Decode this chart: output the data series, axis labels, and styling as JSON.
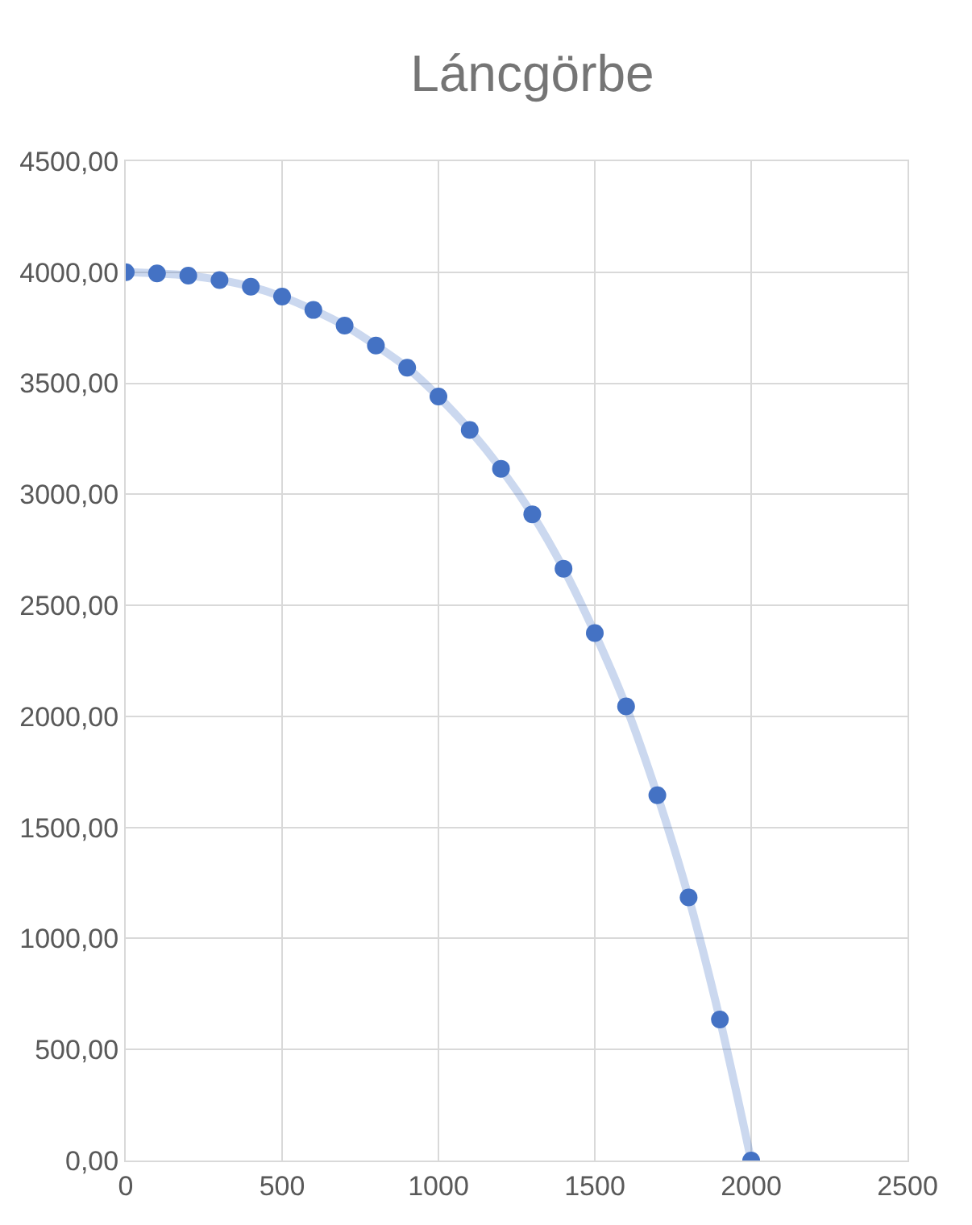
{
  "chart_data": {
    "type": "line",
    "title": "Láncgörbe",
    "x": [
      0,
      100,
      200,
      300,
      400,
      500,
      600,
      700,
      800,
      900,
      1000,
      1100,
      1200,
      1300,
      1400,
      1500,
      1600,
      1700,
      1800,
      1900,
      2000
    ],
    "series": [
      {
        "color": "#4472c4",
        "values": [
          4000,
          3995,
          3985,
          3965,
          3935,
          3890,
          3830,
          3760,
          3670,
          3570,
          3440,
          3290,
          3115,
          2910,
          2665,
          2375,
          2045,
          1645,
          1185,
          635,
          0
        ]
      }
    ],
    "xlim": [
      0,
      2500
    ],
    "xticks": [
      0,
      500,
      1000,
      1500,
      2000,
      2500
    ],
    "ylim": [
      0,
      4500
    ],
    "yticks": [
      {
        "value": 0,
        "label": "0,00"
      },
      {
        "value": 500,
        "label": "500,00"
      },
      {
        "value": 1000,
        "label": "1000,00"
      },
      {
        "value": 1500,
        "label": "1500,00"
      },
      {
        "value": 2000,
        "label": "2000,00"
      },
      {
        "value": 2500,
        "label": "2500,00"
      },
      {
        "value": 3000,
        "label": "3000,00"
      },
      {
        "value": 3500,
        "label": "3500,00"
      },
      {
        "value": 4000,
        "label": "4000,00"
      },
      {
        "value": 4500,
        "label": "4500,00"
      }
    ],
    "grid": true,
    "marker": "circle",
    "line_style": "solid"
  }
}
